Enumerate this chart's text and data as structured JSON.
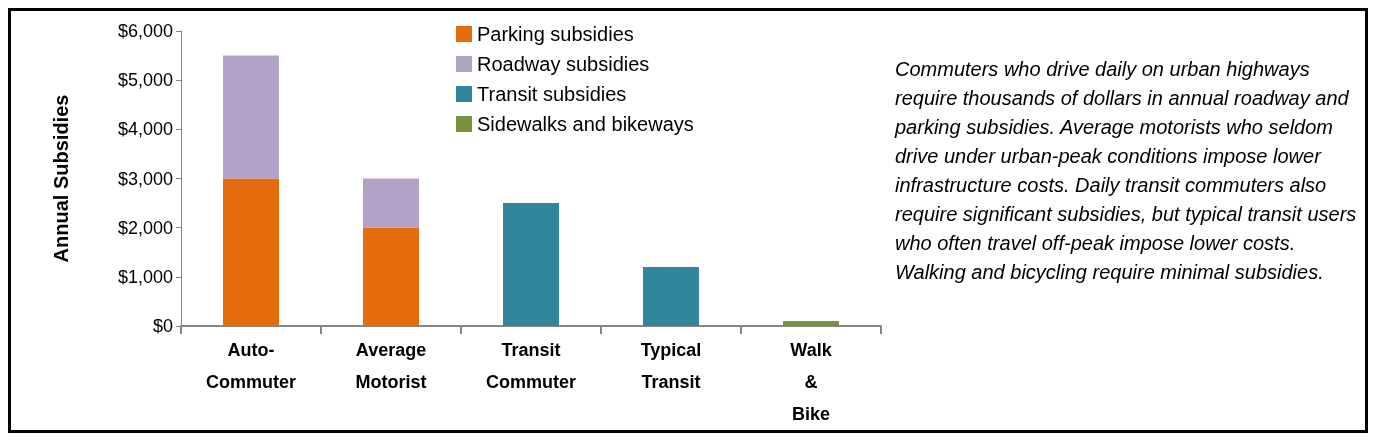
{
  "chart_data": {
    "type": "bar",
    "stacked": true,
    "ylabel": "Annual Subsidies",
    "categories": [
      "Auto-Commuter",
      "Average Motorist",
      "Transit Commuter",
      "Typical Transit",
      "Walk & Bike"
    ],
    "series": [
      {
        "name": "Parking subsidies",
        "color": "#e46c0a",
        "values": [
          3000,
          2000,
          null,
          null,
          null
        ]
      },
      {
        "name": "Roadway subsidies",
        "color": "#b3a2c7",
        "values": [
          2500,
          1000,
          null,
          null,
          null
        ]
      },
      {
        "name": "Transit subsidies",
        "color": "#31859c",
        "values": [
          null,
          null,
          2500,
          1200,
          null
        ]
      },
      {
        "name": "Sidewalks and bikeways",
        "color": "#77933c",
        "values": [
          null,
          null,
          null,
          null,
          100
        ]
      }
    ],
    "ylim": [
      0,
      6000
    ],
    "yticks": [
      {
        "value": 0,
        "label": "$0"
      },
      {
        "value": 1000,
        "label": "$1,000"
      },
      {
        "value": 2000,
        "label": "$2,000"
      },
      {
        "value": 3000,
        "label": "$3,000"
      },
      {
        "value": 4000,
        "label": "$4,000"
      },
      {
        "value": 5000,
        "label": "$5,000"
      },
      {
        "value": 6000,
        "label": "$6,000"
      }
    ],
    "grid": false,
    "legend": "top",
    "annotations": [
      "Commuters who drive daily on urban highways require thousands of dollars in annual roadway and parking subsidies. Average motorists who seldom drive under urban-peak conditions impose lower infrastructure costs. Daily transit commuters also require significant subsidies, but typical transit users who often travel off-peak impose lower costs. Walking and bicycling require minimal subsidies."
    ]
  }
}
